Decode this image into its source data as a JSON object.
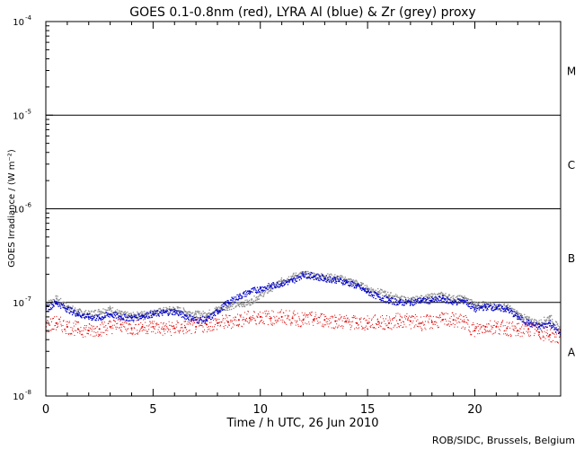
{
  "chart_data": {
    "type": "scatter",
    "title": "GOES 0.1-0.8nm (red), LYRA Al (blue) & Zr (grey) proxy",
    "xlabel": "Time / h UTC, 26 Jun 2010",
    "ylabel": "GOES Irradiance / (W m⁻²)",
    "yscale": "log",
    "xlim": [
      0,
      24
    ],
    "ylim": [
      1e-08,
      0.0001
    ],
    "x_ticks": [
      0,
      5,
      10,
      15,
      20
    ],
    "x_tick_labels": [
      "0",
      "5",
      "10",
      "15",
      "20"
    ],
    "y_ticks": [
      1e-08,
      1e-07,
      1e-06,
      1e-05,
      0.0001
    ],
    "y_tick_labels": [
      {
        "base": "10",
        "exp": "-8"
      },
      {
        "base": "10",
        "exp": "-7"
      },
      {
        "base": "10",
        "exp": "-6"
      },
      {
        "base": "10",
        "exp": "-5"
      },
      {
        "base": "10",
        "exp": "-4"
      }
    ],
    "flare_class_lines": [
      1e-07,
      1e-06,
      1e-05
    ],
    "flare_class_labels": [
      {
        "label": "A",
        "y": 3e-08
      },
      {
        "label": "B",
        "y": 3e-07
      },
      {
        "label": "C",
        "y": 3e-06
      },
      {
        "label": "M",
        "y": 3e-05
      }
    ],
    "series": [
      {
        "name": "GOES 0.1-0.8nm",
        "color": "#e00000",
        "x": [
          0,
          0.5,
          1,
          1.5,
          2,
          2.5,
          3,
          3.5,
          4,
          4.5,
          5,
          5.5,
          6,
          6.5,
          7,
          7.5,
          8,
          8.5,
          9,
          9.5,
          10,
          10.5,
          11,
          11.5,
          12,
          12.5,
          13,
          13.5,
          14,
          14.5,
          15,
          15.5,
          16,
          16.5,
          17,
          17.5,
          18,
          18.5,
          19,
          19.5,
          20,
          20.5,
          21,
          21.5,
          22,
          22.5,
          23,
          23.5,
          24
        ],
        "y": [
          5.5e-08,
          6e-08,
          5.5e-08,
          5.2e-08,
          5e-08,
          5.2e-08,
          5.5e-08,
          5.8e-08,
          5.3e-08,
          5.5e-08,
          5.5e-08,
          5.2e-08,
          5.3e-08,
          5.4e-08,
          5.5e-08,
          5.8e-08,
          6e-08,
          6.2e-08,
          6.5e-08,
          6.8e-08,
          7e-08,
          6.8e-08,
          7e-08,
          6.8e-08,
          6.5e-08,
          6.6e-08,
          6.5e-08,
          6.3e-08,
          6.2e-08,
          6e-08,
          6e-08,
          6.2e-08,
          6e-08,
          6.5e-08,
          6.3e-08,
          6e-08,
          6.2e-08,
          6.5e-08,
          6.5e-08,
          6.2e-08,
          5e-08,
          5.5e-08,
          5.5e-08,
          5.3e-08,
          5e-08,
          5.2e-08,
          4.8e-08,
          4.5e-08,
          4.3e-08
        ]
      },
      {
        "name": "LYRA Al proxy",
        "color": "#0000c8",
        "x": [
          0,
          0.5,
          1,
          1.5,
          2,
          2.5,
          3,
          3.5,
          4,
          4.5,
          5,
          5.5,
          6,
          6.5,
          7,
          7.5,
          8,
          8.5,
          9,
          9.5,
          10,
          10.5,
          11,
          11.5,
          12,
          12.5,
          13,
          13.5,
          14,
          14.5,
          15,
          15.5,
          16,
          16.5,
          17,
          17.5,
          18,
          18.5,
          19,
          19.5,
          20,
          20.5,
          21,
          21.5,
          22,
          22.5,
          23,
          23.5,
          24
        ],
        "y": [
          8.5e-08,
          1e-07,
          8.5e-08,
          7.5e-08,
          7e-08,
          6.8e-08,
          7.5e-08,
          7e-08,
          6.8e-08,
          7.2e-08,
          7.5e-08,
          7.8e-08,
          8e-08,
          7.2e-08,
          6.5e-08,
          6.5e-08,
          8e-08,
          1e-07,
          1.15e-07,
          1.3e-07,
          1.4e-07,
          1.5e-07,
          1.6e-07,
          1.7e-07,
          2e-07,
          1.9e-07,
          1.8e-07,
          1.75e-07,
          1.65e-07,
          1.5e-07,
          1.3e-07,
          1.15e-07,
          1.05e-07,
          1e-07,
          1e-07,
          1.05e-07,
          1.05e-07,
          1.1e-07,
          1e-07,
          1.05e-07,
          8.5e-08,
          9e-08,
          8.8e-08,
          8.5e-08,
          7e-08,
          6e-08,
          5.5e-08,
          6e-08,
          4.5e-08
        ]
      },
      {
        "name": "LYRA Zr proxy",
        "color": "#8c8c8c",
        "x": [
          0,
          0.5,
          1,
          1.5,
          2,
          2.5,
          3,
          3.5,
          4,
          4.5,
          5,
          5.5,
          6,
          6.5,
          7,
          7.5,
          8,
          8.5,
          9,
          9.5,
          10,
          10.5,
          11,
          11.5,
          12,
          12.5,
          13,
          13.5,
          14,
          14.5,
          15,
          15.5,
          16,
          16.5,
          17,
          17.5,
          18,
          18.5,
          19,
          19.5,
          20,
          20.5,
          21,
          21.5,
          22,
          22.5,
          23,
          23.5,
          24
        ],
        "y": [
          9.5e-08,
          1.1e-07,
          9e-08,
          8e-08,
          7.5e-08,
          8e-08,
          8.5e-08,
          7.5e-08,
          7.2e-08,
          7.5e-08,
          7.8e-08,
          8.2e-08,
          8.5e-08,
          8e-08,
          7.5e-08,
          7.5e-08,
          8.5e-08,
          9e-08,
          9.5e-08,
          1e-07,
          1.2e-07,
          1.4e-07,
          1.7e-07,
          1.9e-07,
          2e-07,
          1.95e-07,
          1.9e-07,
          1.85e-07,
          1.75e-07,
          1.6e-07,
          1.4e-07,
          1.3e-07,
          1.2e-07,
          1.1e-07,
          1.05e-07,
          1.1e-07,
          1.15e-07,
          1.2e-07,
          1.1e-07,
          1.1e-07,
          9.5e-08,
          9.5e-08,
          9e-08,
          9e-08,
          7.5e-08,
          6.5e-08,
          6e-08,
          7e-08,
          5e-08
        ]
      }
    ]
  },
  "footer": {
    "credit": "ROB/SIDC, Brussels, Belgium"
  }
}
